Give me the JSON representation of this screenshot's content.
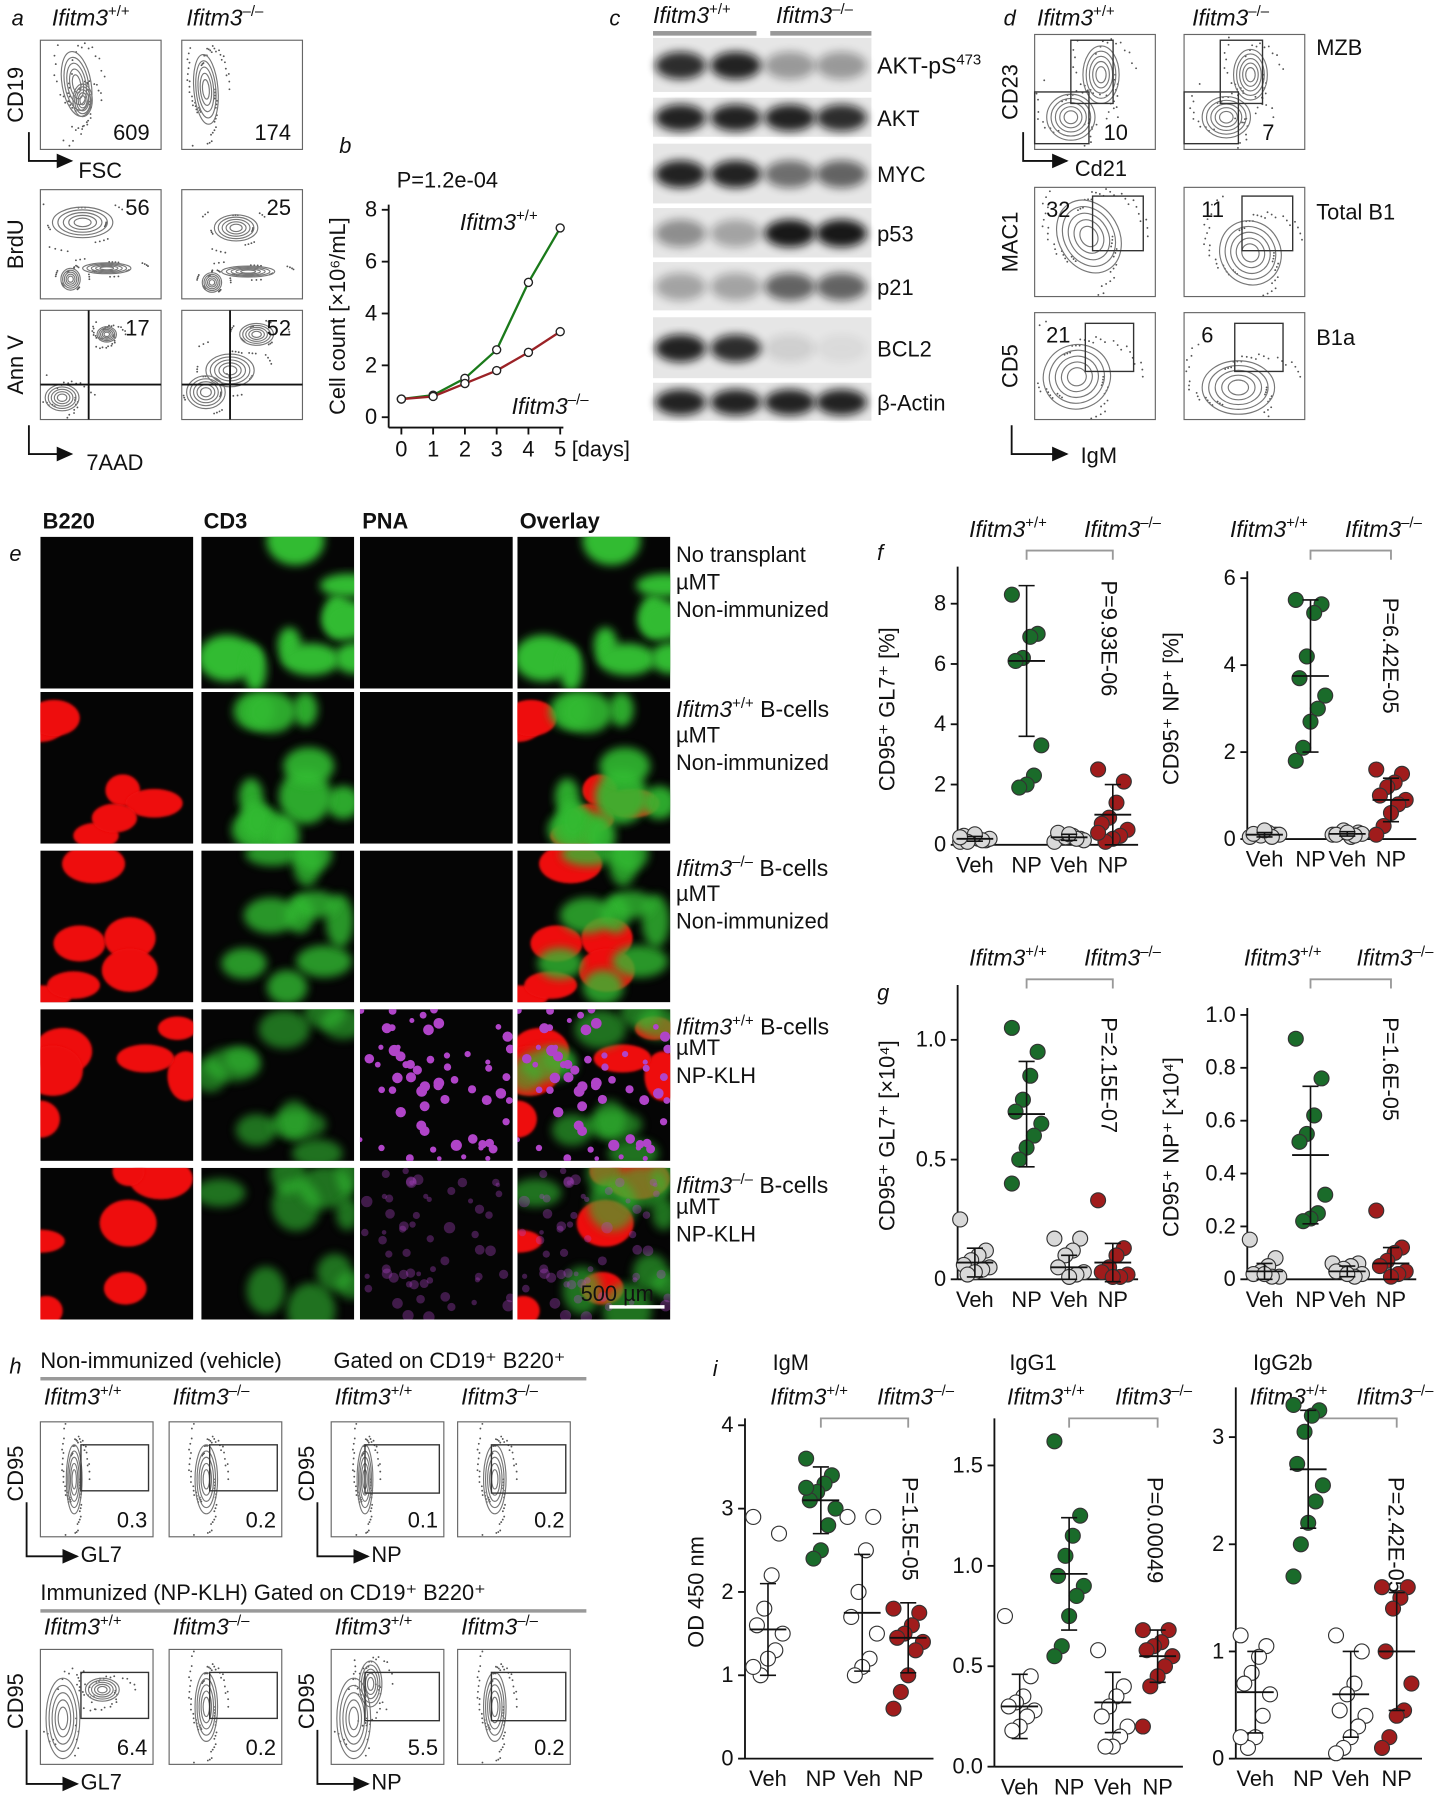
{
  "genotypes": {
    "wt": {
      "base": "Ifitm3",
      "sup": "+/+",
      "color": "#1a7a1a"
    },
    "ko": {
      "base": "Ifitm3",
      "sup": "–/–",
      "color": "#9b2226"
    }
  },
  "panel_labels": {
    "a": "a",
    "b": "b",
    "c": "c",
    "d": "d",
    "e": "e",
    "f": "f",
    "g": "g",
    "h": "h",
    "i": "i"
  },
  "panel_a": {
    "rows": [
      {
        "y_label": "CD19",
        "x_label": "FSC",
        "values": [
          "609",
          "174"
        ]
      },
      {
        "y_label": "BrdU",
        "values": [
          "56",
          "25"
        ]
      },
      {
        "y_label": "Ann V",
        "x_label": "7AAD",
        "values": [
          "17",
          "52"
        ]
      }
    ]
  },
  "panel_c": {
    "labels": [
      {
        "base": "AKT-pS",
        "sup": "473"
      },
      "AKT",
      "MYC",
      "p53",
      "p21",
      "BCL2",
      "β-Actin"
    ]
  },
  "panel_d": {
    "rows": [
      {
        "y_label": "CD23",
        "x_label": "Cd21",
        "name": "MZB",
        "values": [
          "10",
          "7"
        ]
      },
      {
        "y_label": "MAC1",
        "name": "Total B1",
        "values": [
          "32",
          "11"
        ]
      },
      {
        "y_label": "CD5",
        "x_label": "IgM",
        "name": "B1a",
        "values": [
          "21",
          "6"
        ]
      }
    ]
  },
  "panel_e": {
    "columns": [
      {
        "text": "B220",
        "color": "#d62020"
      },
      {
        "text": "CD3",
        "color": "#1f9a1f"
      },
      {
        "text": "PNA",
        "color": "#9b30b0"
      },
      {
        "text": "Overlay",
        "color": "#000000"
      }
    ],
    "rows": [
      {
        "lines": [
          "No transplant",
          "µMT",
          "Non-immunized"
        ]
      },
      {
        "title": {
          "base": "Ifitm3",
          "sup": "+/+",
          "rest": " B-cells",
          "color": "#1a7a1a"
        },
        "lines": [
          "µMT",
          "Non-immunized"
        ]
      },
      {
        "title": {
          "base": "Ifitm3",
          "sup": "–/–",
          "rest": " B-cells",
          "color": "#9b2226"
        },
        "lines": [
          "µMT",
          "Non-immunized"
        ]
      },
      {
        "title": {
          "base": "Ifitm3",
          "sup": "+/+",
          "rest": "  B-cells",
          "color": "#1a7a1a"
        },
        "lines": [
          "µMT",
          "NP-KLH"
        ]
      },
      {
        "title": {
          "base": "Ifitm3",
          "sup": "–/–",
          "rest": " B-cells",
          "color": "#9b2226"
        },
        "lines": [
          "µMT",
          "NP-KLH"
        ]
      }
    ],
    "scale_bar": "500 µm"
  },
  "panel_h": {
    "rows": [
      {
        "title": "Non-immunized (vehicle)",
        "gate": "Gated on CD19⁺ B220⁺",
        "values": [
          "0.3",
          "0.2",
          "0.1",
          "0.2"
        ]
      },
      {
        "title": "Immunized (NP-KLH) Gated on CD19⁺ B220⁺",
        "values": [
          "6.4",
          "0.2",
          "5.5",
          "0.2"
        ]
      }
    ],
    "y_label": "CD95",
    "x_labels": [
      "GL7",
      "NP"
    ]
  },
  "chart_data": [
    {
      "type": "line",
      "annotation": "P=1.2e-04",
      "y_label": "Cell count [×10⁶/mL]",
      "x_label": "[days]",
      "x": [
        0,
        1,
        2,
        3,
        4,
        5
      ],
      "xlim": [
        -0.4,
        5.1
      ],
      "xticks": [
        0,
        1,
        2,
        3,
        4,
        5
      ],
      "ylim": [
        -0.4,
        8.2
      ],
      "yticks": [
        0,
        2,
        4,
        6,
        8
      ],
      "series": [
        {
          "name": {
            "base": "Ifitm3",
            "sup": "+/+"
          },
          "color": "#1a7a1a",
          "values": [
            0.7,
            0.85,
            1.5,
            2.6,
            5.2,
            7.3
          ]
        },
        {
          "name": {
            "base": "Ifitm3",
            "sup": "–/–"
          },
          "color": "#9b2226",
          "values": [
            0.7,
            0.8,
            1.3,
            1.8,
            2.5,
            3.3
          ]
        }
      ]
    },
    {
      "type": "dot",
      "y_label": "CD95⁺ GL7⁺ [%]",
      "annotation": "P=9.93E-06",
      "categories": [
        "Veh",
        "NP",
        "Veh",
        "NP"
      ],
      "colors": [
        "#d9d9d9",
        "#1a6b2a",
        "#d9d9d9",
        "#a01c1c"
      ],
      "ylim": [
        0,
        9
      ],
      "yticks": [
        0,
        2,
        4,
        6,
        8
      ],
      "groups": [
        [
          0.1,
          0.15,
          0.2,
          0.25,
          0.3,
          0.2,
          0.15,
          0.35,
          0.1,
          0.25
        ],
        [
          8.3,
          7.0,
          6.9,
          6.2,
          6.1,
          3.3,
          2.3,
          2.0,
          1.9
        ],
        [
          0.1,
          0.2,
          0.3,
          0.25,
          0.4,
          0.15,
          0.2,
          0.35
        ],
        [
          2.5,
          2.1,
          1.4,
          0.9,
          0.7,
          0.5,
          0.3,
          0.2,
          0.1,
          0.4
        ]
      ],
      "means": [
        0.2,
        6.1,
        0.25,
        1.0
      ],
      "sds": [
        0.08,
        2.5,
        0.1,
        1.0
      ]
    },
    {
      "type": "dot",
      "y_label": "CD95⁺ NP⁺ [%]",
      "annotation": "P=6.42E-05",
      "categories": [
        "Veh",
        "NP",
        "Veh",
        "NP"
      ],
      "colors": [
        "#d9d9d9",
        "#1a6b2a",
        "#d9d9d9",
        "#a01c1c"
      ],
      "ylim": [
        0,
        6
      ],
      "yticks": [
        0,
        2,
        4,
        6
      ],
      "groups": [
        [
          0.05,
          0.1,
          0.15,
          0.08,
          0.12,
          0.1,
          0.05,
          0.2
        ],
        [
          5.5,
          5.4,
          5.2,
          4.2,
          3.7,
          3.3,
          3.0,
          2.7,
          2.1,
          1.8
        ],
        [
          0.1,
          0.15,
          0.05,
          0.2,
          0.1,
          0.12,
          0.08,
          0.15
        ],
        [
          1.6,
          1.5,
          1.3,
          1.2,
          1.0,
          0.9,
          0.8,
          0.6,
          0.3,
          0.1
        ]
      ],
      "means": [
        0.1,
        3.75,
        0.12,
        0.9
      ],
      "sds": [
        0.05,
        1.75,
        0.05,
        0.5
      ]
    },
    {
      "type": "dot",
      "y_label": "CD95⁺ GL7⁺ [×10⁴]",
      "annotation": "P=2.15E-07",
      "categories": [
        "Veh",
        "NP",
        "Veh",
        "NP"
      ],
      "colors": [
        "#d9d9d9",
        "#1a6b2a",
        "#d9d9d9",
        "#a01c1c"
      ],
      "ylim": [
        0,
        1.2
      ],
      "yticks": [
        0,
        0.5,
        {
          "value": 1,
          "label": "1.0"
        }
      ],
      "groups": [
        [
          0.25,
          0.12,
          0.1,
          0.08,
          0.06,
          0.05,
          0.04,
          0.03,
          0.02
        ],
        [
          1.05,
          0.95,
          0.85,
          0.75,
          0.7,
          0.65,
          0.6,
          0.55,
          0.5,
          0.4
        ],
        [
          0.17,
          0.17,
          0.12,
          0.1,
          0.05,
          0.03,
          0.02,
          0.01
        ],
        [
          0.33,
          0.13,
          0.1,
          0.05,
          0.03,
          0.02,
          0.01,
          0.01
        ]
      ],
      "means": [
        0.07,
        0.69,
        0.05,
        0.07
      ],
      "sds": [
        0.06,
        0.22,
        0.05,
        0.08
      ]
    },
    {
      "type": "dot",
      "y_label": "CD95⁺ NP⁺ [×10⁴]",
      "annotation": "P=1.6E-05",
      "categories": [
        "Veh",
        "NP",
        "Veh",
        "NP"
      ],
      "colors": [
        "#d9d9d9",
        "#1a6b2a",
        "#d9d9d9",
        "#a01c1c"
      ],
      "ylim": [
        0,
        1.0
      ],
      "yticks": [
        0,
        0.2,
        0.4,
        0.6,
        0.8,
        {
          "value": 1,
          "label": "1.0"
        }
      ],
      "groups": [
        [
          0.15,
          0.08,
          0.05,
          0.03,
          0.02,
          0.01,
          0.01,
          0.02
        ],
        [
          0.91,
          0.76,
          0.62,
          0.55,
          0.52,
          0.32,
          0.25,
          0.23,
          0.22
        ],
        [
          0.06,
          0.06,
          0.05,
          0.04,
          0.03,
          0.02,
          0.01,
          0.02
        ],
        [
          0.26,
          0.12,
          0.1,
          0.07,
          0.05,
          0.03,
          0.02,
          0.01
        ]
      ],
      "means": [
        0.03,
        0.47,
        0.03,
        0.06
      ],
      "sds": [
        0.03,
        0.26,
        0.02,
        0.06
      ]
    },
    {
      "type": "dot",
      "title": "IgM",
      "y_label": "OD 450 nm",
      "annotation": "P=1.5E-05",
      "categories": [
        "Veh",
        "NP",
        "Veh",
        "NP"
      ],
      "colors": [
        "#ffffff",
        "#1a6b2a",
        "#ffffff",
        "#a01c1c"
      ],
      "ylim": [
        0,
        4
      ],
      "yticks": [
        0,
        1,
        2,
        3,
        4
      ],
      "groups": [
        [
          2.9,
          2.7,
          2.2,
          1.8,
          1.6,
          1.5,
          1.3,
          1.2,
          1.0,
          1.1
        ],
        [
          3.6,
          3.4,
          3.3,
          3.2,
          3.1,
          3.0,
          2.8,
          2.5,
          2.4,
          3.25
        ],
        [
          2.9,
          2.9,
          2.5,
          2.0,
          1.7,
          1.5,
          1.2,
          1.1,
          1.0
        ],
        [
          1.8,
          1.75,
          1.6,
          1.5,
          1.45,
          1.4,
          1.3,
          1.0,
          0.8,
          0.6
        ]
      ],
      "means": [
        1.55,
        3.1,
        1.75,
        1.45
      ],
      "sds": [
        0.55,
        0.4,
        0.7,
        0.42
      ]
    },
    {
      "type": "dot",
      "title": "IgG1",
      "annotation": "P=0.00049",
      "categories": [
        "Veh",
        "NP",
        "Veh",
        "NP"
      ],
      "colors": [
        "#ffffff",
        "#1a6b2a",
        "#ffffff",
        "#a01c1c"
      ],
      "ylim": [
        0,
        1.7
      ],
      "yticks": [
        {
          "value": 0,
          "label": "0.0"
        },
        0.5,
        {
          "value": 1,
          "label": "1.0"
        },
        1.5
      ],
      "groups": [
        [
          0.75,
          0.45,
          0.35,
          0.32,
          0.3,
          0.28,
          0.25,
          0.2,
          0.18
        ],
        [
          1.62,
          1.25,
          1.15,
          1.05,
          0.95,
          0.9,
          0.85,
          0.75,
          0.6,
          0.55
        ],
        [
          0.58,
          0.4,
          0.35,
          0.3,
          0.25,
          0.2,
          0.15,
          0.1,
          0.1
        ],
        [
          0.68,
          0.68,
          0.62,
          0.6,
          0.58,
          0.55,
          0.5,
          0.45,
          0.4,
          0.2
        ]
      ],
      "means": [
        0.3,
        0.96,
        0.32,
        0.55
      ],
      "sds": [
        0.16,
        0.28,
        0.15,
        0.13
      ]
    },
    {
      "type": "dot",
      "title": "IgG2b",
      "annotation": "P=2.42E-05",
      "categories": [
        "Veh",
        "NP",
        "Veh",
        "NP"
      ],
      "colors": [
        "#ffffff",
        "#1a6b2a",
        "#ffffff",
        "#a01c1c"
      ],
      "ylim": [
        0,
        3.4
      ],
      "yticks": [
        0,
        1,
        2,
        3
      ],
      "groups": [
        [
          1.15,
          1.05,
          0.95,
          0.8,
          0.7,
          0.6,
          0.4,
          0.2,
          0.1,
          0.2
        ],
        [
          3.3,
          3.25,
          3.2,
          3.05,
          2.75,
          2.55,
          2.4,
          2.2,
          2.0,
          1.7
        ],
        [
          1.15,
          1.0,
          0.7,
          0.6,
          0.45,
          0.4,
          0.3,
          0.2,
          0.1,
          0.05
        ],
        [
          1.6,
          1.6,
          1.5,
          1.4,
          1.0,
          0.7,
          0.45,
          0.4,
          0.2,
          0.1
        ]
      ],
      "means": [
        0.62,
        2.7,
        0.6,
        1.0
      ],
      "sds": [
        0.38,
        0.55,
        0.4,
        0.55
      ]
    }
  ]
}
